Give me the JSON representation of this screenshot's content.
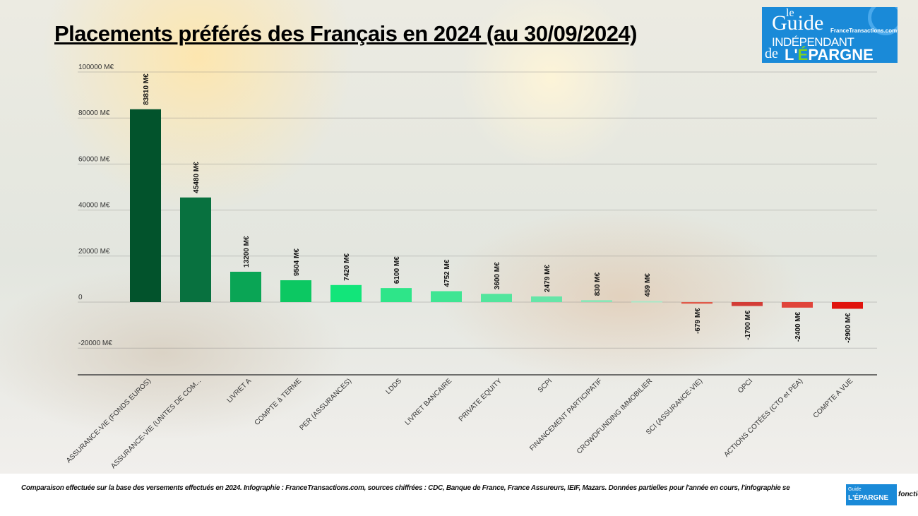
{
  "title": "Placements préférés des Français en 2024 (au 30/09/2024)",
  "logo": {
    "le": "le",
    "guide": "Guide",
    "independant": "INDÉPENDANT",
    "site": "FranceTransactions.com",
    "de": "de",
    "epargne_l": "L'",
    "epargne_e": "É",
    "epargne_rest": "PARGNE"
  },
  "footnote": "Comparaison effectuée sur la base des versements effectués en 2024. Infographie : FranceTransactions.com, sources chiffrées : CDC, Banque de France, France Assureurs, IEIF, Mazars. Données partielles pour l'année en cours, l'infographie se",
  "footnote_tail": "fonctio",
  "chart_data": {
    "type": "bar",
    "title": "Placements préférés des Français en 2024 (au 30/09/2024)",
    "ylim": [
      -30000,
      100000
    ],
    "yticks": [
      100000,
      80000,
      60000,
      40000,
      20000,
      0,
      -20000
    ],
    "ytick_labels": [
      "100000 M€",
      "80000 M€",
      "60000 M€",
      "40000 M€",
      "20000 M€",
      "0",
      "-20000 M€"
    ],
    "grid": true,
    "categories": [
      "ASSURANCE-VIE (FONDS EUROS)",
      "ASSURANCE-VIE (UNITES DE COM...",
      "LIVRET A",
      "COMPTE à TERME",
      "PER (ASSURANCES)",
      "LDDS",
      "LIVRET BANCAIRE",
      "PRIVATE EQUITY",
      "SCPI",
      "FINANCEMENT PARTICIPATIF",
      "CROWDFUNDING IMMOBILIER",
      "SCI (ASSURANCE-VIE)",
      "OPCI",
      "ACTIONS COTÉES (CTO et PEA)",
      "COMPTE A VUE"
    ],
    "values": [
      83810,
      45480,
      13200,
      9504,
      7420,
      6100,
      4752,
      3600,
      2479,
      830,
      459,
      -679,
      -1700,
      -2400,
      -2900
    ],
    "data_labels": [
      "83810 M€",
      "45480 M€",
      "13200 M€",
      "9504 M€",
      "7420 M€",
      "6100 M€",
      "4752 M€",
      "3600 M€",
      "2479 M€",
      "830 M€",
      "459 M€",
      "-679 M€",
      "-1700 M€",
      "-2400 M€",
      "-2900 M€"
    ],
    "colors": [
      "#02532c",
      "#08713f",
      "#0aa555",
      "#0cc862",
      "#12e57a",
      "#2ee589",
      "#3fe593",
      "#52e59d",
      "#66e5a8",
      "#88e6b7",
      "#a8e8c8",
      "#e05a4a",
      "#d33c36",
      "#e0443a",
      "#e0140e"
    ]
  }
}
